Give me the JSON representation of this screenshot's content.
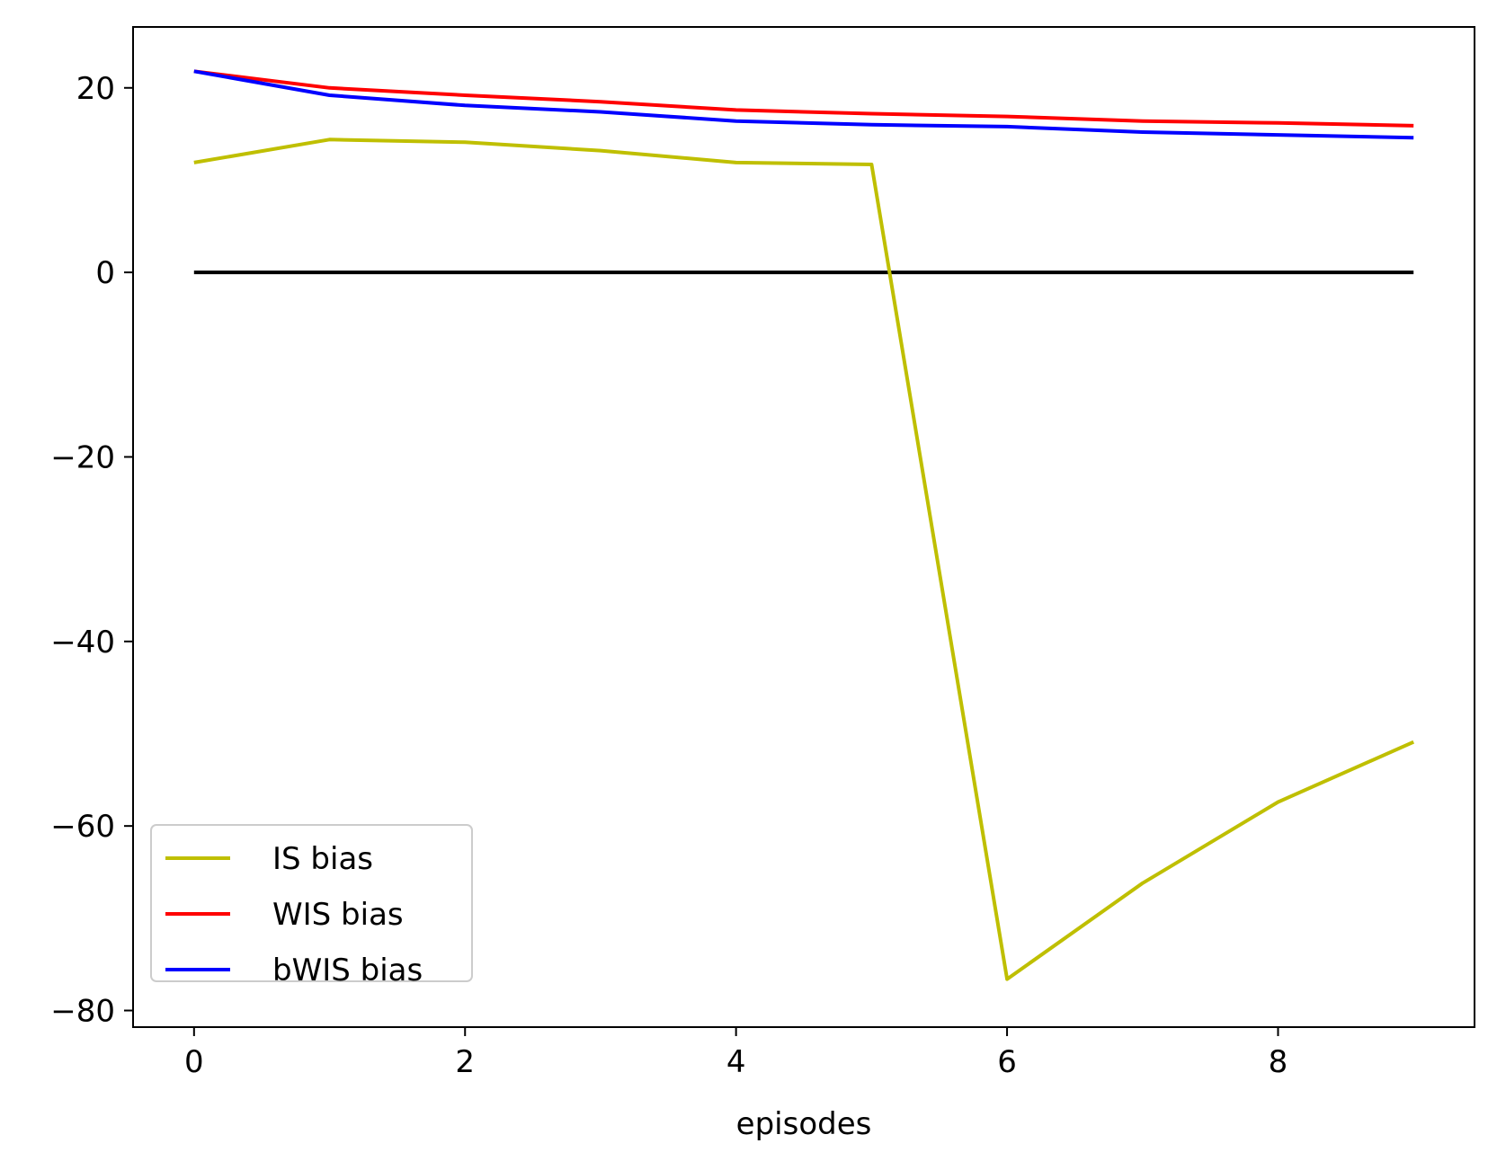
{
  "chart_data": {
    "type": "line",
    "title": "",
    "xlabel": "episodes",
    "ylabel": "",
    "xlim": [
      -0.45,
      9.45
    ],
    "ylim": [
      -81.8,
      26.6
    ],
    "xticks": [
      0,
      2,
      4,
      6,
      8
    ],
    "xtick_labels": [
      "0",
      "2",
      "4",
      "6",
      "8"
    ],
    "yticks": [
      20,
      0,
      -20,
      -40,
      -60,
      -80
    ],
    "ytick_labels": [
      "20",
      "0",
      "−20",
      "−40",
      "−60",
      "−80"
    ],
    "grid": false,
    "legend_position": "lower-left",
    "x": [
      0,
      1,
      2,
      3,
      4,
      5,
      6,
      7,
      8,
      9
    ],
    "series": [
      {
        "name": "IS bias",
        "color": "#bfbf00",
        "values": [
          11.9,
          14.4,
          14.1,
          13.2,
          11.9,
          11.7,
          -76.6,
          -66.2,
          -57.4,
          -50.9
        ]
      },
      {
        "name": "WIS bias",
        "color": "#ff0000",
        "values": [
          21.8,
          20.0,
          19.2,
          18.5,
          17.6,
          17.2,
          16.9,
          16.4,
          16.2,
          15.9
        ]
      },
      {
        "name": "bWIS bias",
        "color": "#0000ff",
        "values": [
          21.8,
          19.2,
          18.1,
          17.4,
          16.4,
          16.0,
          15.8,
          15.2,
          14.9,
          14.6
        ]
      }
    ],
    "reference_line": {
      "color": "#000000",
      "x": [
        0,
        9
      ],
      "values": [
        0,
        0
      ]
    }
  }
}
